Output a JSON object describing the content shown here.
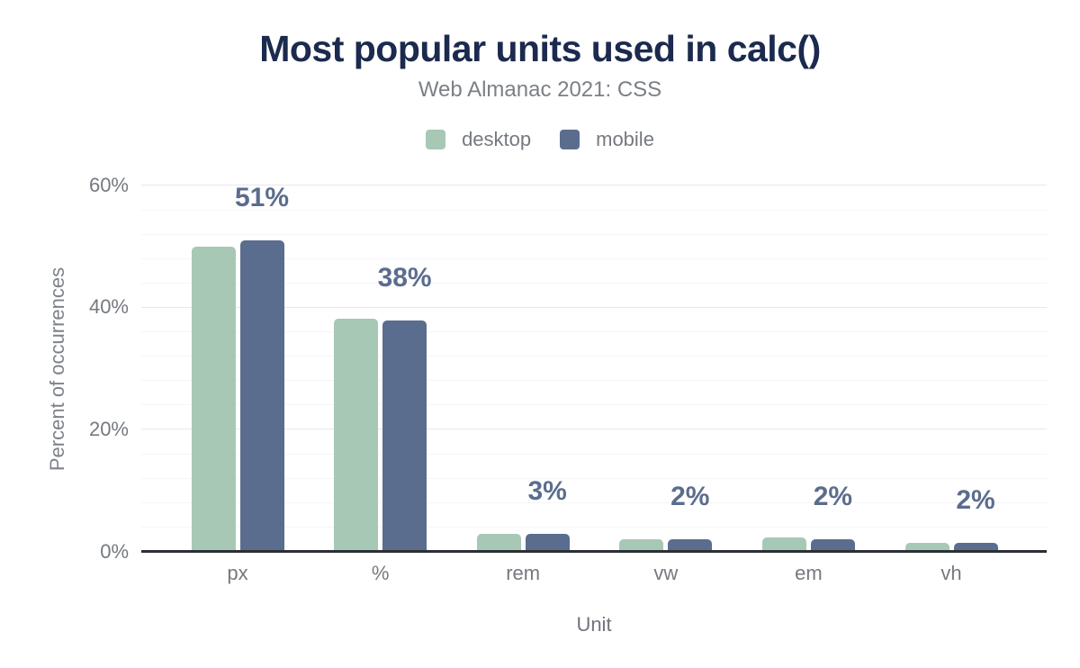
{
  "chart_data": {
    "type": "bar",
    "title": "Most popular units used in calc()",
    "subtitle": "Web Almanac 2021: CSS",
    "xlabel": "Unit",
    "ylabel": "Percent of occurrences",
    "categories": [
      "px",
      "%",
      "rem",
      "vw",
      "em",
      "vh"
    ],
    "series": [
      {
        "name": "desktop",
        "color": "#a7c8b5",
        "values": [
          50.0,
          38.2,
          2.9,
          2.1,
          2.4,
          1.5
        ]
      },
      {
        "name": "mobile",
        "color": "#5b6d8e",
        "values": [
          51.0,
          37.9,
          3.0,
          2.0,
          2.1,
          1.5
        ]
      }
    ],
    "data_labels": [
      "51%",
      "38%",
      "3%",
      "2%",
      "2%",
      "2%"
    ],
    "data_label_color": "#5b6d8e",
    "y_axis": {
      "ticks": [
        {
          "value": 0,
          "label": "0%"
        },
        {
          "value": 20,
          "label": "20%"
        },
        {
          "value": 40,
          "label": "40%"
        },
        {
          "value": 60,
          "label": "60%"
        }
      ],
      "max": 60,
      "minor_step": 4
    },
    "legend_position": "top",
    "grid": true
  },
  "colors": {
    "title": "#1b2a4e",
    "subtitle": "#7c8086",
    "axis_text": "#75797f",
    "axis_line": "#2c2f33",
    "grid_major": "#e8e8e9",
    "grid_minor": "#f5f5f6",
    "background": "#ffffff"
  }
}
